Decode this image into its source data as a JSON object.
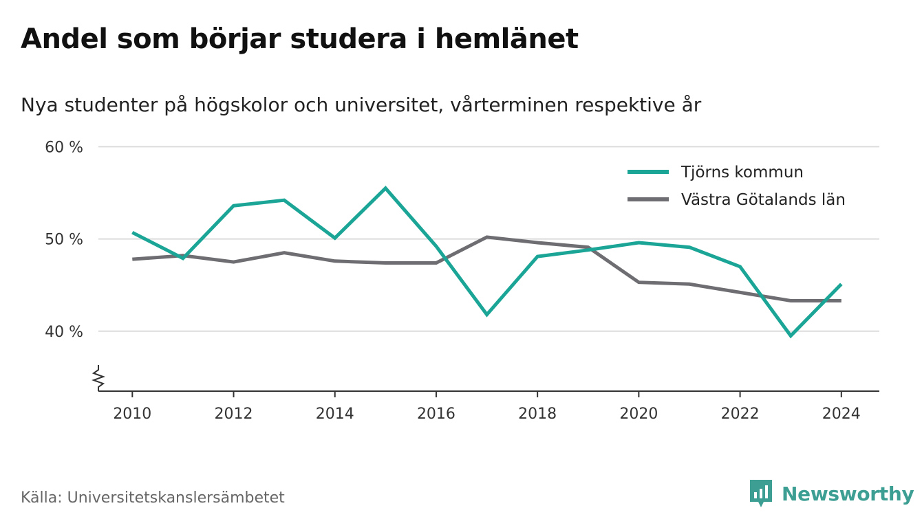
{
  "header": {
    "title": "Andel som börjar studera i hemlänet",
    "subtitle": "Nya studenter på högskolor och universitet, vårterminen respektive år"
  },
  "footer": {
    "source": "Källa: Universitetskanslersämbetet",
    "brand": "Newsworthy",
    "brand_icon": "newsworthy-chart-icon"
  },
  "colors": {
    "teal": "#1aa597",
    "gray": "#6e6e72",
    "grid": "#dcdcdc",
    "axis": "#333333",
    "brand": "#3d9f94"
  },
  "chart_data": {
    "type": "line",
    "title": "Andel som börjar studera i hemlänet",
    "subtitle": "Nya studenter på högskolor och universitet, vårterminen respektive år",
    "x": [
      2010,
      2011,
      2012,
      2013,
      2014,
      2015,
      2016,
      2017,
      2018,
      2019,
      2020,
      2021,
      2022,
      2023,
      2024
    ],
    "series": [
      {
        "name": "Tjörns kommun",
        "color": "#1aa597",
        "values": [
          50.7,
          47.9,
          53.6,
          54.2,
          50.1,
          55.5,
          49.2,
          41.8,
          48.1,
          48.8,
          49.6,
          49.1,
          47.0,
          39.5,
          45.1
        ]
      },
      {
        "name": "Västra Götalands län",
        "color": "#6e6e72",
        "values": [
          47.8,
          48.2,
          47.5,
          48.5,
          47.6,
          47.4,
          47.4,
          50.2,
          49.6,
          49.1,
          45.3,
          45.1,
          44.2,
          43.3,
          43.3
        ]
      }
    ],
    "x_ticks": [
      2010,
      2012,
      2014,
      2016,
      2018,
      2020,
      2022,
      2024
    ],
    "x_tick_labels": [
      "2010",
      "2012",
      "2014",
      "2016",
      "2018",
      "2020",
      "2022",
      "2024"
    ],
    "y_ticks": [
      40,
      50,
      60
    ],
    "y_tick_labels": [
      "40 %",
      "50 %",
      "60 %"
    ],
    "ylim": [
      33.5,
      61
    ],
    "xlim": [
      2009.33,
      2024.75
    ],
    "y_axis_break": true,
    "grid": true,
    "legend_position": "top-right",
    "xlabel": "",
    "ylabel": ""
  }
}
